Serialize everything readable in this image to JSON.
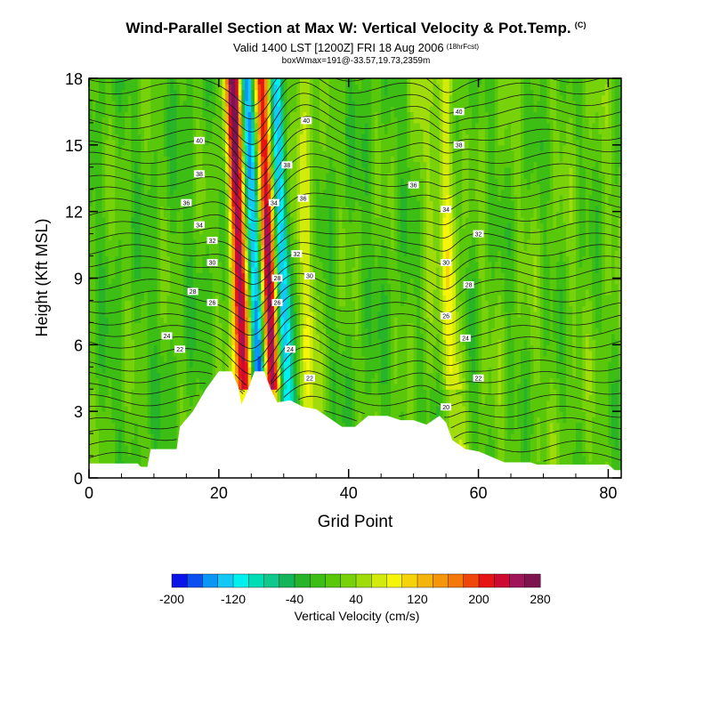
{
  "header": {
    "title": "Wind-Parallel Section at Max W: Vertical Velocity & Pot.Temp.",
    "title_mark": "(C)",
    "subtitle": "Valid 1400 LST [1200Z] FRI 18 Aug 2006",
    "subtitle_small": "(18hrFcst)",
    "subtitle2": "boxWmax=191@-33.57,19.73,2359m"
  },
  "chart_data": {
    "type": "heatmap",
    "title": "Wind-Parallel Section at Max W: Vertical Velocity & Pot.Temp.",
    "xlabel": "Grid Point",
    "ylabel": "Height (Kft MSL)",
    "xlim": [
      0,
      82
    ],
    "ylim": [
      0,
      18
    ],
    "x_ticks": [
      "0",
      "20",
      "40",
      "60",
      "80"
    ],
    "x_tick_values": [
      0,
      20,
      40,
      60,
      80
    ],
    "y_ticks": [
      "0",
      "3",
      "6",
      "9",
      "12",
      "15",
      "18"
    ],
    "y_tick_values": [
      0,
      3,
      6,
      9,
      12,
      15,
      18
    ],
    "colorbar": {
      "label": "Vertical Velocity (cm/s)",
      "min": -200,
      "max": 280,
      "step": 20,
      "tick_labels": [
        "-200",
        "-120",
        "-40",
        "40",
        "120",
        "200",
        "280"
      ],
      "tick_values": [
        -200,
        -120,
        -40,
        40,
        120,
        200,
        280
      ],
      "colors": [
        "#0a14e6",
        "#0a50f0",
        "#0a96f5",
        "#14c8f5",
        "#00f0f0",
        "#00dcb4",
        "#10c88c",
        "#14b45a",
        "#28b428",
        "#3cbe14",
        "#5ac80a",
        "#78d20a",
        "#a0dc0a",
        "#d2eb0a",
        "#f5f50a",
        "#f5d20a",
        "#f5b40a",
        "#f5960a",
        "#f5780a",
        "#f0460a",
        "#e61414",
        "#cd0a32",
        "#a0145a",
        "#7d1450"
      ]
    },
    "updrafts": [
      {
        "x": 23.2,
        "peak": 270
      },
      {
        "x": 27.6,
        "peak": 260
      },
      {
        "x": 55.6,
        "peak": 80
      },
      {
        "x": 52.0,
        "peak": 30
      }
    ],
    "downdrafts": [
      {
        "x": 25.4,
        "peak": -200
      },
      {
        "x": 29.6,
        "peak": -140
      }
    ],
    "terrain": [
      [
        0,
        0.65
      ],
      [
        7.5,
        0.65
      ],
      [
        8,
        0.5
      ],
      [
        9,
        0.5
      ],
      [
        9.5,
        1.3
      ],
      [
        13.5,
        1.3
      ],
      [
        14,
        2.3
      ],
      [
        16,
        3.0
      ],
      [
        18,
        4.0
      ],
      [
        20,
        4.8
      ],
      [
        22,
        4.8
      ],
      [
        23,
        4.1
      ],
      [
        23.5,
        3.3
      ],
      [
        24.5,
        4.0
      ],
      [
        25.5,
        4.8
      ],
      [
        27,
        4.8
      ],
      [
        28,
        4.0
      ],
      [
        29,
        3.4
      ],
      [
        31,
        3.5
      ],
      [
        33,
        3.2
      ],
      [
        35,
        3.1
      ],
      [
        37,
        2.7
      ],
      [
        39,
        2.3
      ],
      [
        41,
        2.3
      ],
      [
        43,
        2.8
      ],
      [
        46,
        2.8
      ],
      [
        48,
        2.6
      ],
      [
        50,
        2.6
      ],
      [
        52,
        2.4
      ],
      [
        54,
        2.8
      ],
      [
        55,
        2.5
      ],
      [
        56,
        1.7
      ],
      [
        58,
        1.3
      ],
      [
        60,
        1.2
      ],
      [
        64,
        0.7
      ],
      [
        68,
        0.7
      ],
      [
        69,
        0.6
      ],
      [
        80,
        0.6
      ],
      [
        81,
        0.35
      ],
      [
        82,
        0.35
      ]
    ],
    "isentrope_labels": [
      {
        "x": 17,
        "y": 15.2,
        "text": "40"
      },
      {
        "x": 17,
        "y": 13.7,
        "text": "38"
      },
      {
        "x": 15,
        "y": 12.4,
        "text": "36"
      },
      {
        "x": 17,
        "y": 11.4,
        "text": "34"
      },
      {
        "x": 19,
        "y": 10.7,
        "text": "32"
      },
      {
        "x": 19,
        "y": 9.7,
        "text": "30"
      },
      {
        "x": 16,
        "y": 8.4,
        "text": "28"
      },
      {
        "x": 19,
        "y": 7.9,
        "text": "26"
      },
      {
        "x": 12,
        "y": 6.4,
        "text": "24"
      },
      {
        "x": 14,
        "y": 5.8,
        "text": "22"
      },
      {
        "x": 33.5,
        "y": 16.1,
        "text": "40"
      },
      {
        "x": 30.5,
        "y": 14.1,
        "text": "38"
      },
      {
        "x": 33,
        "y": 12.6,
        "text": "36"
      },
      {
        "x": 28.5,
        "y": 12.4,
        "text": "34"
      },
      {
        "x": 32,
        "y": 10.1,
        "text": "32"
      },
      {
        "x": 34,
        "y": 9.1,
        "text": "30"
      },
      {
        "x": 29,
        "y": 9.0,
        "text": "28"
      },
      {
        "x": 29,
        "y": 7.9,
        "text": "26"
      },
      {
        "x": 31,
        "y": 5.8,
        "text": "24"
      },
      {
        "x": 34,
        "y": 4.5,
        "text": "22"
      },
      {
        "x": 57,
        "y": 16.5,
        "text": "40"
      },
      {
        "x": 57,
        "y": 15.0,
        "text": "38"
      },
      {
        "x": 50,
        "y": 13.2,
        "text": "36"
      },
      {
        "x": 55,
        "y": 12.1,
        "text": "34"
      },
      {
        "x": 60,
        "y": 11.0,
        "text": "32"
      },
      {
        "x": 55,
        "y": 9.7,
        "text": "30"
      },
      {
        "x": 58.5,
        "y": 8.7,
        "text": "28"
      },
      {
        "x": 55,
        "y": 7.3,
        "text": "26"
      },
      {
        "x": 58,
        "y": 6.3,
        "text": "24"
      },
      {
        "x": 60,
        "y": 4.5,
        "text": "22"
      },
      {
        "x": 55,
        "y": 3.2,
        "text": "20"
      }
    ]
  }
}
